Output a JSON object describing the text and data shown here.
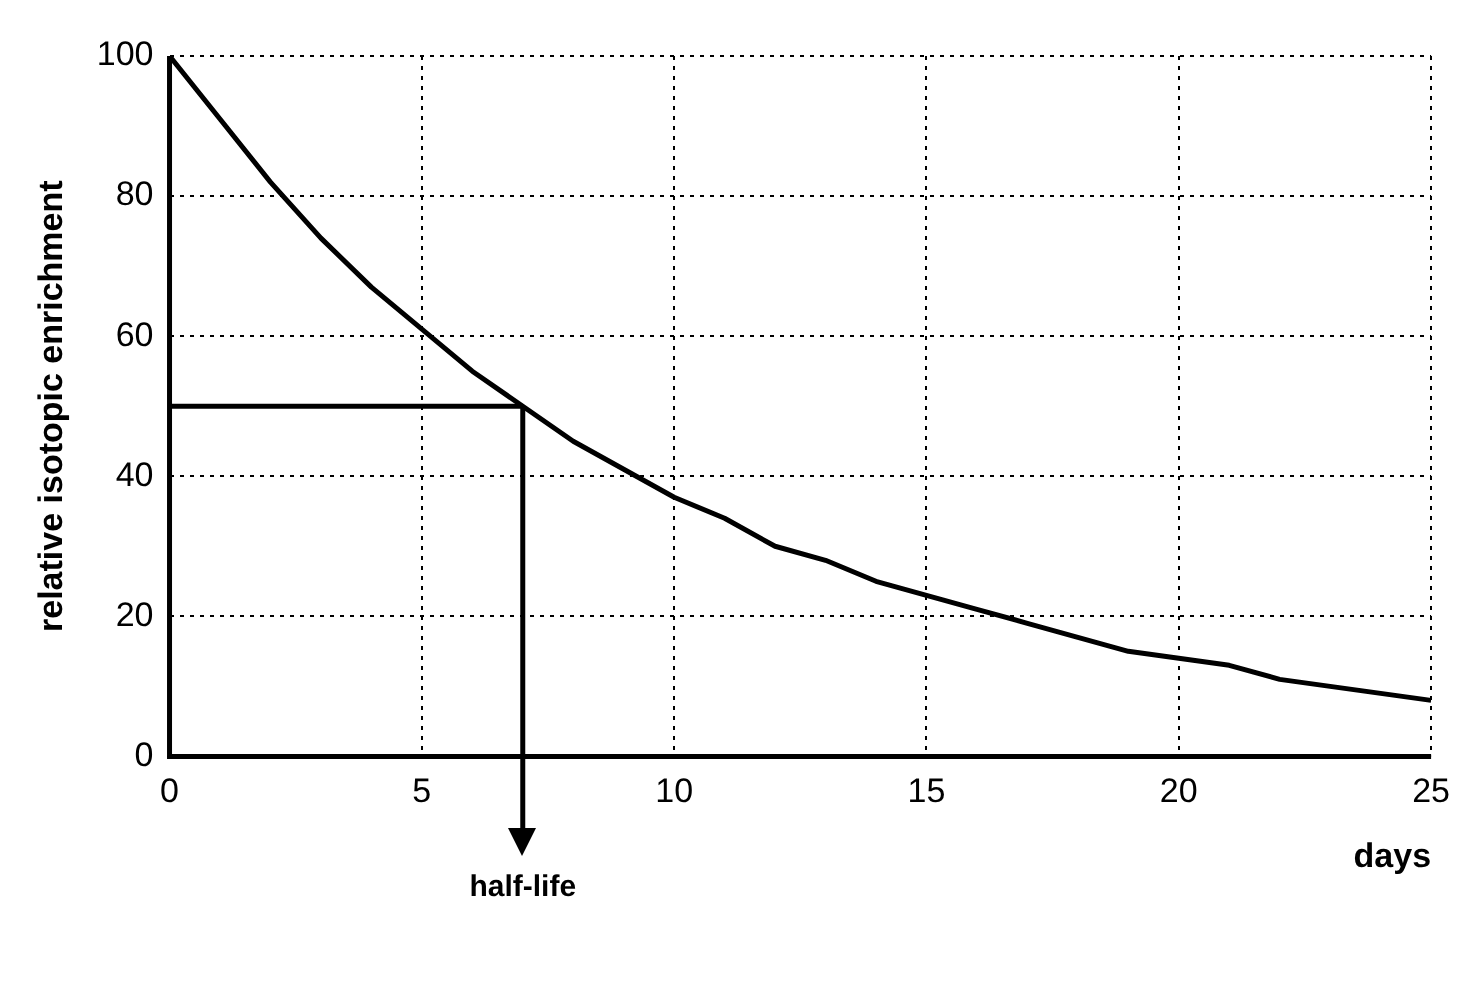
{
  "chart_data": {
    "type": "line",
    "xlabel": "days",
    "ylabel": "relative isotopic enrichment",
    "x": [
      0,
      1,
      2,
      3,
      4,
      5,
      6,
      7,
      8,
      9,
      10,
      11,
      12,
      13,
      14,
      15,
      16,
      17,
      18,
      19,
      20,
      21,
      22,
      23,
      24,
      25
    ],
    "series": [
      {
        "color": "#000000",
        "values": [
          100,
          91,
          82,
          74,
          67,
          61,
          55,
          50,
          45,
          41,
          37,
          34,
          30,
          28,
          25,
          23,
          21,
          19,
          17,
          15,
          14,
          13,
          11,
          10,
          9,
          8
        ]
      }
    ],
    "xlim": [
      0,
      25
    ],
    "xticks": [
      0,
      5,
      10,
      15,
      20,
      25
    ],
    "ylim": [
      0,
      100
    ],
    "yticks": [
      0,
      20,
      40,
      60,
      80,
      100
    ],
    "grid": true,
    "legend": false,
    "marker": "none",
    "line_style": "solid",
    "ref_lines": [
      {
        "axis": "y",
        "value": 50,
        "color": "#000000"
      },
      {
        "axis": "x",
        "value": 7,
        "label": "half-life",
        "color": "#000000"
      }
    ]
  }
}
